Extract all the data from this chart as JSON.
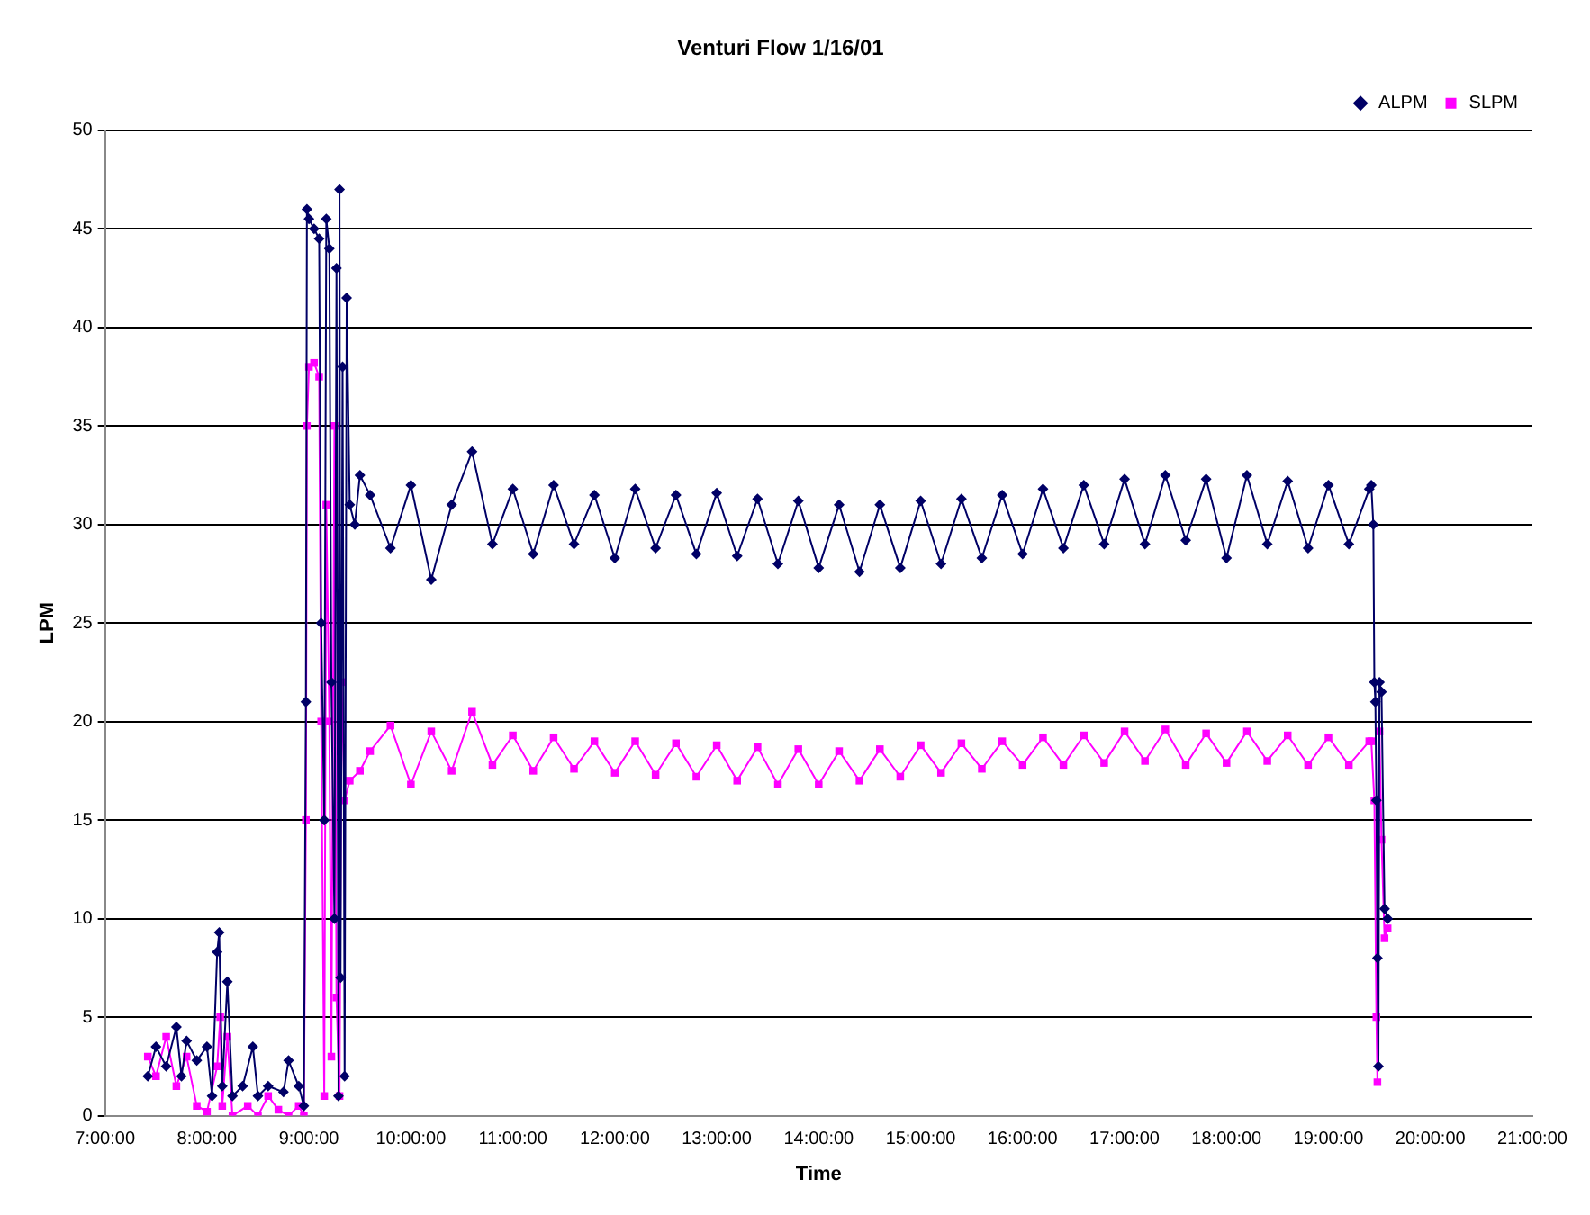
{
  "chart_data": {
    "type": "line",
    "title": "Venturi Flow 1/16/01",
    "xlabel": "Time",
    "ylabel": "LPM",
    "xlim": [
      7,
      21
    ],
    "xticks": [
      {
        "value": 7,
        "label": "7:00:00"
      },
      {
        "value": 8,
        "label": "8:00:00"
      },
      {
        "value": 9,
        "label": "9:00:00"
      },
      {
        "value": 10,
        "label": "10:00:00"
      },
      {
        "value": 11,
        "label": "11:00:00"
      },
      {
        "value": 12,
        "label": "12:00:00"
      },
      {
        "value": 13,
        "label": "13:00:00"
      },
      {
        "value": 14,
        "label": "14:00:00"
      },
      {
        "value": 15,
        "label": "15:00:00"
      },
      {
        "value": 16,
        "label": "16:00:00"
      },
      {
        "value": 17,
        "label": "17:00:00"
      },
      {
        "value": 18,
        "label": "18:00:00"
      },
      {
        "value": 19,
        "label": "19:00:00"
      },
      {
        "value": 20,
        "label": "20:00:00"
      },
      {
        "value": 21,
        "label": "21:00:00"
      }
    ],
    "ylim": [
      0,
      50
    ],
    "yticks": [
      0,
      5,
      10,
      15,
      20,
      25,
      30,
      35,
      40,
      45,
      50
    ],
    "grid": "y",
    "legend": "top right",
    "line_style": "solid",
    "series": [
      {
        "name": "ALPM",
        "color": "#000066",
        "marker": "diamond",
        "x": [
          7.42,
          7.5,
          7.6,
          7.7,
          7.75,
          7.8,
          7.9,
          8,
          8.05,
          8.1,
          8.12,
          8.15,
          8.2,
          8.25,
          8.35,
          8.45,
          8.5,
          8.6,
          8.75,
          8.8,
          8.9,
          8.95,
          8.97,
          8.98,
          9,
          9.05,
          9.1,
          9.12,
          9.15,
          9.17,
          9.2,
          9.22,
          9.25,
          9.27,
          9.29,
          9.3,
          9.31,
          9.33,
          9.35,
          9.37,
          9.4,
          9.45,
          9.5,
          9.6,
          9.8,
          10,
          10.2,
          10.4,
          10.6,
          10.8,
          11,
          11.2,
          11.4,
          11.6,
          11.8,
          12,
          12.2,
          12.4,
          12.6,
          12.8,
          13,
          13.2,
          13.4,
          13.6,
          13.8,
          14,
          14.2,
          14.4,
          14.6,
          14.8,
          15,
          15.2,
          15.4,
          15.6,
          15.8,
          16,
          16.2,
          16.4,
          16.6,
          16.8,
          17,
          17.2,
          17.4,
          17.6,
          17.8,
          18,
          18.2,
          18.4,
          18.6,
          18.8,
          19,
          19.2,
          19.4,
          19.42,
          19.44,
          19.45,
          19.46,
          19.47,
          19.48,
          19.49,
          19.5,
          19.52,
          19.55,
          19.58
        ],
        "values": [
          2,
          3.5,
          2.5,
          4.5,
          2,
          3.8,
          2.8,
          3.5,
          1,
          8.3,
          9.3,
          1.5,
          6.8,
          1,
          1.5,
          3.5,
          1,
          1.5,
          1.2,
          2.8,
          1.5,
          0.5,
          21,
          46,
          45.5,
          45,
          44.5,
          25,
          15,
          45.5,
          44,
          22,
          10,
          43,
          1,
          47,
          7,
          38,
          2,
          41.5,
          31,
          30,
          32.5,
          31.5,
          28.8,
          32,
          27.2,
          31,
          33.7,
          29,
          31.8,
          28.5,
          32,
          29,
          31.5,
          28.3,
          31.8,
          28.8,
          31.5,
          28.5,
          31.6,
          28.4,
          31.3,
          28,
          31.2,
          27.8,
          31,
          27.6,
          31,
          27.8,
          31.2,
          28,
          31.3,
          28.3,
          31.5,
          28.5,
          31.8,
          28.8,
          32,
          29,
          32.3,
          29,
          32.5,
          29.2,
          32.3,
          28.3,
          32.5,
          29,
          32.2,
          28.8,
          32,
          29,
          31.8,
          32,
          30,
          22,
          21,
          16,
          8,
          2.5,
          22,
          21.5,
          10.5,
          10
        ]
      },
      {
        "name": "SLPM",
        "color": "#ff00ff",
        "marker": "square",
        "x": [
          7.42,
          7.5,
          7.6,
          7.7,
          7.8,
          7.9,
          8,
          8.1,
          8.13,
          8.15,
          8.2,
          8.25,
          8.4,
          8.5,
          8.6,
          8.7,
          8.8,
          8.9,
          8.95,
          8.97,
          8.98,
          9,
          9.05,
          9.1,
          9.12,
          9.15,
          9.17,
          9.2,
          9.22,
          9.25,
          9.27,
          9.3,
          9.32,
          9.35,
          9.4,
          9.5,
          9.6,
          9.8,
          10,
          10.2,
          10.4,
          10.6,
          10.8,
          11,
          11.2,
          11.4,
          11.6,
          11.8,
          12,
          12.2,
          12.4,
          12.6,
          12.8,
          13,
          13.2,
          13.4,
          13.6,
          13.8,
          14,
          14.2,
          14.4,
          14.6,
          14.8,
          15,
          15.2,
          15.4,
          15.6,
          15.8,
          16,
          16.2,
          16.4,
          16.6,
          16.8,
          17,
          17.2,
          17.4,
          17.6,
          17.8,
          18,
          18.2,
          18.4,
          18.6,
          18.8,
          19,
          19.2,
          19.4,
          19.42,
          19.45,
          19.47,
          19.48,
          19.5,
          19.52,
          19.55,
          19.58
        ],
        "values": [
          3,
          2,
          4,
          1.5,
          3,
          0.5,
          0.2,
          2.5,
          5,
          0.5,
          4,
          0,
          0.5,
          0,
          1,
          0.3,
          0,
          0.5,
          0,
          15,
          35,
          38,
          38.2,
          37.5,
          20,
          1,
          31,
          20,
          3,
          35,
          6,
          1,
          22,
          16,
          17,
          17.5,
          18.5,
          19.8,
          16.8,
          19.5,
          17.5,
          20.5,
          17.8,
          19.3,
          17.5,
          19.2,
          17.6,
          19,
          17.4,
          19,
          17.3,
          18.9,
          17.2,
          18.8,
          17,
          18.7,
          16.8,
          18.6,
          16.8,
          18.5,
          17,
          18.6,
          17.2,
          18.8,
          17.4,
          18.9,
          17.6,
          19,
          17.8,
          19.2,
          17.8,
          19.3,
          17.9,
          19.5,
          18,
          19.6,
          17.8,
          19.4,
          17.9,
          19.5,
          18,
          19.3,
          17.8,
          19.2,
          17.8,
          19,
          19,
          16,
          5,
          1.7,
          19.5,
          14,
          9,
          9.5
        ]
      }
    ]
  }
}
